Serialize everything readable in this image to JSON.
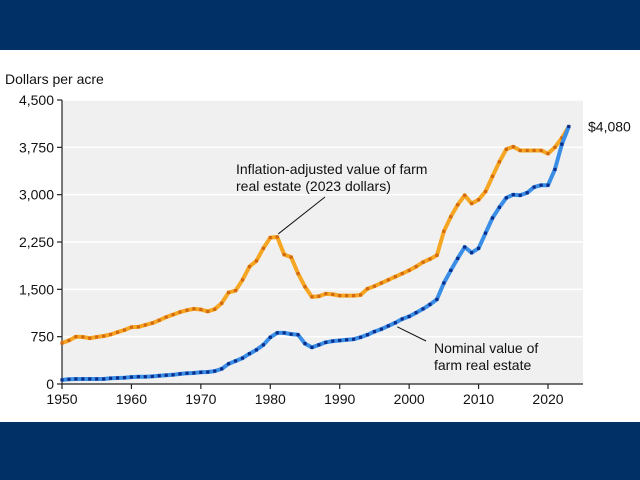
{
  "header_band": {
    "color": "#003066"
  },
  "footer_band": {
    "color": "#003066"
  },
  "chart_data": {
    "type": "line",
    "title": "",
    "xlabel": "",
    "ylabel": "Dollars per acre",
    "xlim": [
      1950,
      2023
    ],
    "ylim": [
      0,
      4500
    ],
    "yticks": [
      0,
      750,
      1500,
      2250,
      3000,
      3750,
      4500
    ],
    "ytick_labels": [
      "0",
      "750",
      "1,500",
      "2,250",
      "3,000",
      "3,750",
      "4,500"
    ],
    "xticks": [
      1950,
      1960,
      1970,
      1980,
      1990,
      2000,
      2010,
      2020
    ],
    "xtick_labels": [
      "1950",
      "1960",
      "1970",
      "1980",
      "1990",
      "2000",
      "2010",
      "2020"
    ],
    "grid": true,
    "grid_color": "#ffffff",
    "plot_background": "#f0f0f0",
    "x": [
      1950,
      1951,
      1952,
      1953,
      1954,
      1955,
      1956,
      1957,
      1958,
      1959,
      1960,
      1961,
      1962,
      1963,
      1964,
      1965,
      1966,
      1967,
      1968,
      1969,
      1970,
      1971,
      1972,
      1973,
      1974,
      1975,
      1976,
      1977,
      1978,
      1979,
      1980,
      1981,
      1982,
      1983,
      1984,
      1985,
      1986,
      1987,
      1988,
      1989,
      1990,
      1991,
      1992,
      1993,
      1994,
      1995,
      1996,
      1997,
      1998,
      1999,
      2000,
      2001,
      2002,
      2003,
      2004,
      2005,
      2006,
      2007,
      2008,
      2009,
      2010,
      2011,
      2012,
      2013,
      2014,
      2015,
      2016,
      2017,
      2018,
      2019,
      2020,
      2021,
      2022,
      2023
    ],
    "series": [
      {
        "name": "Inflation-adjusted value of farm real estate (2023 dollars)",
        "color": "#f5a623",
        "marker_color": "#d4680f",
        "values": [
          650,
          690,
          750,
          745,
          725,
          745,
          760,
          785,
          820,
          855,
          900,
          905,
          935,
          965,
          1010,
          1060,
          1100,
          1140,
          1170,
          1190,
          1180,
          1150,
          1185,
          1280,
          1450,
          1480,
          1650,
          1860,
          1950,
          2150,
          2320,
          2330,
          2050,
          2010,
          1750,
          1540,
          1380,
          1390,
          1430,
          1420,
          1400,
          1400,
          1400,
          1410,
          1510,
          1550,
          1600,
          1650,
          1700,
          1750,
          1800,
          1860,
          1930,
          1980,
          2040,
          2420,
          2650,
          2840,
          2990,
          2860,
          2920,
          3050,
          3290,
          3520,
          3720,
          3760,
          3700,
          3700,
          3700,
          3700,
          3650,
          3750,
          3900,
          4080
        ]
      },
      {
        "name": "Nominal value of farm real estate",
        "color": "#3a8ee6",
        "marker_color": "#0a2d8a",
        "values": [
          65,
          75,
          80,
          80,
          80,
          80,
          80,
          90,
          95,
          100,
          110,
          115,
          115,
          120,
          130,
          140,
          145,
          160,
          170,
          175,
          185,
          190,
          205,
          240,
          320,
          365,
          410,
          480,
          540,
          620,
          740,
          810,
          810,
          790,
          780,
          640,
          580,
          620,
          660,
          680,
          690,
          700,
          710,
          740,
          780,
          830,
          870,
          920,
          970,
          1030,
          1070,
          1130,
          1190,
          1260,
          1340,
          1600,
          1800,
          1990,
          2170,
          2080,
          2150,
          2390,
          2630,
          2800,
          2950,
          3000,
          2990,
          3030,
          3120,
          3150,
          3150,
          3400,
          3800,
          4080
        ]
      }
    ],
    "annotations": [
      {
        "text_lines": [
          "Inflation-adjusted value of farm",
          "real estate (2023 dollars)"
        ],
        "points_to": {
          "x": 1981,
          "series": 0
        }
      },
      {
        "text_lines": [
          "Nominal value of",
          "farm real estate"
        ],
        "points_to": {
          "x": 1998,
          "series": 1
        }
      },
      {
        "text": "$4,080",
        "points_to": {
          "x": 2023,
          "series": 1
        }
      }
    ]
  }
}
